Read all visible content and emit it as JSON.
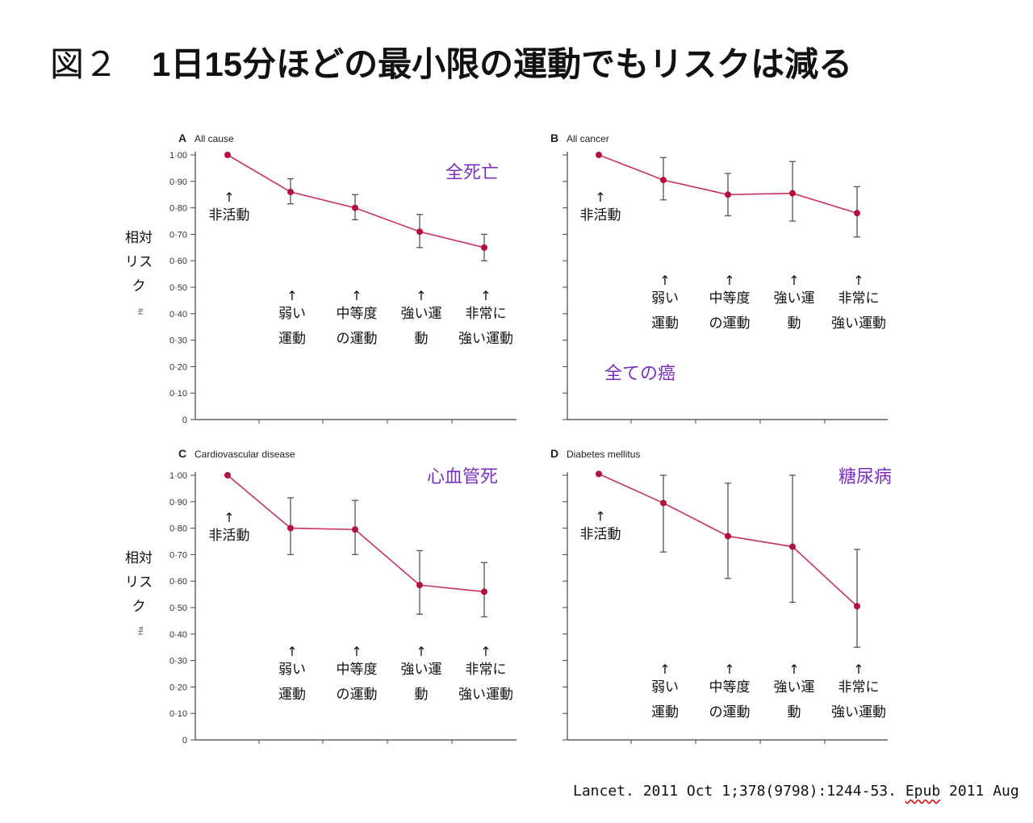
{
  "title": {
    "prefix": "図２",
    "main": "1日15分ほどの最小限の運動でもリスクは減る"
  },
  "ylabel": [
    "相対",
    "リス",
    "ク"
  ],
  "yunit_small": [
    "Hr",
    "Ha"
  ],
  "citation": {
    "text": "Lancet. 2011 Oct 1;378(9798):1244-53. ",
    "epub": "Epub",
    "tail": " 2011 Aug"
  },
  "colors": {
    "line": "#c8325a",
    "point": "#b4103c",
    "error": "#555555",
    "axis": "#444444",
    "jp_label": "#7a2fbf"
  },
  "categories": [
    "非活動",
    "弱い運動",
    "中等度の運動",
    "強い運動",
    "非常に強い運動"
  ],
  "chart_data": [
    {
      "type": "line",
      "letter": "A",
      "title": "All cause",
      "jp_title": "全死亡",
      "ylim": [
        0,
        1.0
      ],
      "yticks": [
        "1·00",
        "0·90",
        "0·80",
        "0·70",
        "0·60",
        "0·50",
        "0·40",
        "0·30",
        "0·20",
        "0·10",
        "0"
      ],
      "values": [
        1.0,
        0.86,
        0.8,
        0.71,
        0.65
      ],
      "err_low": [
        null,
        0.815,
        0.755,
        0.65,
        0.6
      ],
      "err_high": [
        null,
        0.91,
        0.85,
        0.775,
        0.7
      ],
      "arrow_labels": [
        [
          "非活動"
        ],
        [
          "弱い",
          "運動"
        ],
        [
          "中等度",
          "の運動"
        ],
        [
          "強い運",
          "動"
        ],
        [
          "非常に",
          "強い運動"
        ]
      ]
    },
    {
      "type": "line",
      "letter": "B",
      "title": "All cancer",
      "jp_title": "全ての癌",
      "ylim": [
        0,
        1.0
      ],
      "values": [
        1.0,
        0.905,
        0.85,
        0.855,
        0.78
      ],
      "err_low": [
        null,
        0.83,
        0.77,
        0.75,
        0.69
      ],
      "err_high": [
        null,
        0.99,
        0.93,
        0.975,
        0.88
      ],
      "arrow_labels": [
        [
          "非活動"
        ],
        [
          "弱い",
          "運動"
        ],
        [
          "中等度",
          "の運動"
        ],
        [
          "強い運",
          "動"
        ],
        [
          "非常に",
          "強い運動"
        ]
      ]
    },
    {
      "type": "line",
      "letter": "C",
      "title": "Cardiovascular disease",
      "jp_title": "心血管死",
      "ylim": [
        0,
        1.0
      ],
      "yticks": [
        "1·00",
        "0·90",
        "0·80",
        "0·70",
        "0·60",
        "0·50",
        "0·40",
        "0·30",
        "0·20",
        "0·10",
        "0"
      ],
      "values": [
        1.0,
        0.8,
        0.795,
        0.585,
        0.56
      ],
      "err_low": [
        null,
        0.7,
        0.7,
        0.475,
        0.465
      ],
      "err_high": [
        null,
        0.915,
        0.905,
        0.715,
        0.67
      ],
      "arrow_labels": [
        [
          "非活動"
        ],
        [
          "弱い",
          "運動"
        ],
        [
          "中等度",
          "の運動"
        ],
        [
          "強い運",
          "動"
        ],
        [
          "非常に",
          "強い運動"
        ]
      ]
    },
    {
      "type": "line",
      "letter": "D",
      "title": "Diabetes mellitus",
      "jp_title": "糖尿病",
      "ylim": [
        0,
        1.0
      ],
      "values": [
        1.005,
        0.895,
        0.77,
        0.73,
        0.505
      ],
      "err_low": [
        null,
        0.71,
        0.61,
        0.52,
        0.35
      ],
      "err_high": [
        null,
        1.0,
        0.97,
        1.0,
        0.72
      ],
      "arrow_labels": [
        [
          "非活動"
        ],
        [
          "弱い",
          "運動"
        ],
        [
          "中等度",
          "の運動"
        ],
        [
          "強い運",
          "動"
        ],
        [
          "非常に",
          "強い運動"
        ]
      ]
    }
  ]
}
